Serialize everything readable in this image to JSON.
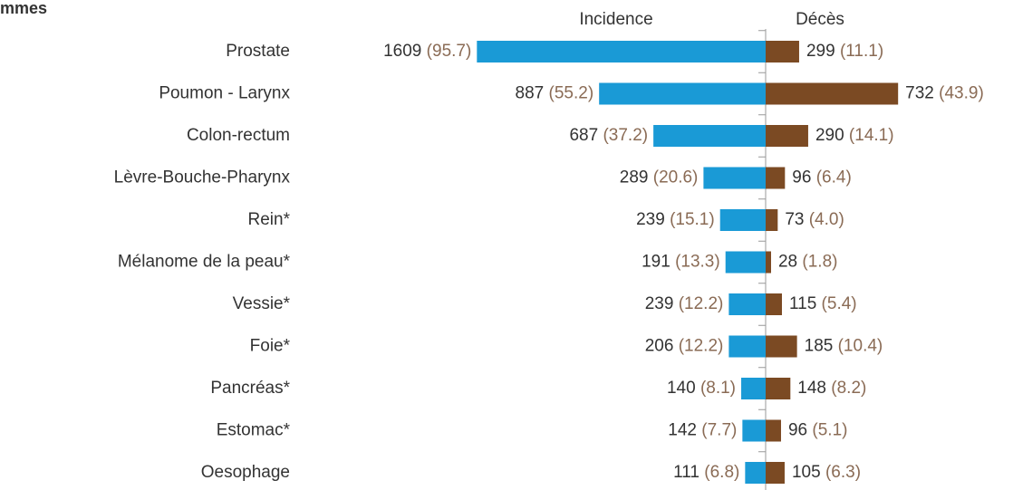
{
  "chart_data": {
    "type": "butterfly",
    "title": "mmes",
    "categories": [
      "Prostate",
      "Poumon - Larynx",
      "Colon-rectum",
      "Lèvre-Bouche-Pharynx",
      "Rein*",
      "Mélanome de la peau*",
      "Vessie*",
      "Foie*",
      "Pancréas*",
      "Estomac*",
      "Oesophage"
    ],
    "series": [
      {
        "name": "Incidence",
        "color": "#1a9ad6",
        "counts": [
          1609,
          887,
          687,
          289,
          239,
          191,
          239,
          206,
          140,
          142,
          111
        ],
        "values": [
          95.7,
          55.2,
          37.2,
          20.6,
          15.1,
          13.3,
          12.2,
          12.2,
          8.1,
          7.7,
          6.8
        ],
        "value_labels": [
          "(95.7)",
          "(55.2)",
          "(37.2)",
          "(20.6)",
          "(15.1)",
          "(13.3)",
          "(12.2)",
          "(12.2)",
          "(8.1)",
          "(7.7)",
          "(6.8)"
        ]
      },
      {
        "name": "Décès",
        "color": "#7b4a23",
        "counts": [
          299,
          732,
          290,
          96,
          73,
          28,
          115,
          185,
          148,
          96,
          105
        ],
        "values": [
          11.1,
          43.9,
          14.1,
          6.4,
          4.0,
          1.8,
          5.4,
          10.4,
          8.2,
          5.1,
          6.3
        ],
        "value_labels": [
          "(11.1)",
          "(43.9)",
          "(14.1)",
          "(6.4)",
          "(4.0)",
          "(1.8)",
          "(5.4)",
          "(10.4)",
          "(8.2)",
          "(5.1)",
          "(6.3)"
        ]
      }
    ]
  }
}
